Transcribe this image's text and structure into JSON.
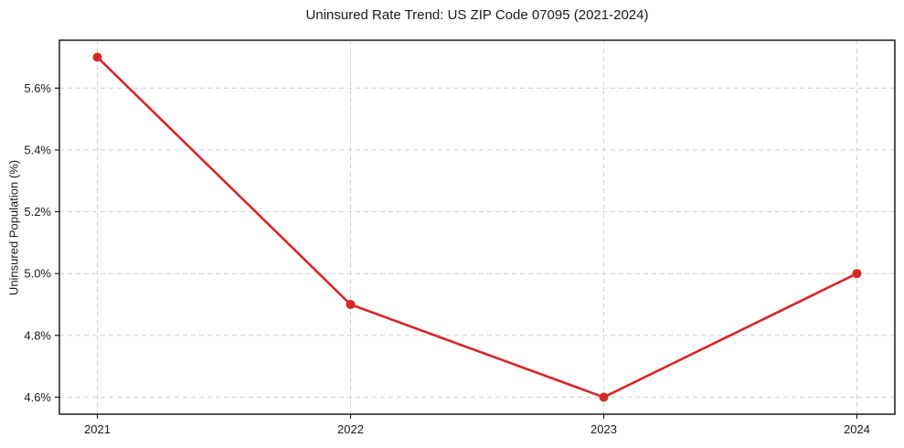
{
  "chart_data": {
    "type": "line",
    "title": "Uninsured Rate Trend: US ZIP Code 07095 (2021-2024)",
    "xlabel": "",
    "ylabel": "Uninsured Population (%)",
    "x": [
      "2021",
      "2022",
      "2023",
      "2024"
    ],
    "values": [
      5.7,
      4.9,
      4.6,
      5.0
    ],
    "ytick_values": [
      4.6,
      4.8,
      5.0,
      5.2,
      5.4,
      5.6
    ],
    "ytick_labels": [
      "4.6%",
      "4.8%",
      "5.0%",
      "5.2%",
      "5.4%",
      "5.6%"
    ],
    "ylim": [
      4.545,
      5.755
    ],
    "x_margin_frac": 0.15,
    "grid": "dashed both axes",
    "legend": "none",
    "marker": "circle",
    "colors": {
      "line": "#d62728",
      "marker": "#d62728",
      "grid": "#cfcfcf",
      "spine": "#1c1c1c",
      "text": "#1a1a1a",
      "background": "#ffffff"
    }
  }
}
